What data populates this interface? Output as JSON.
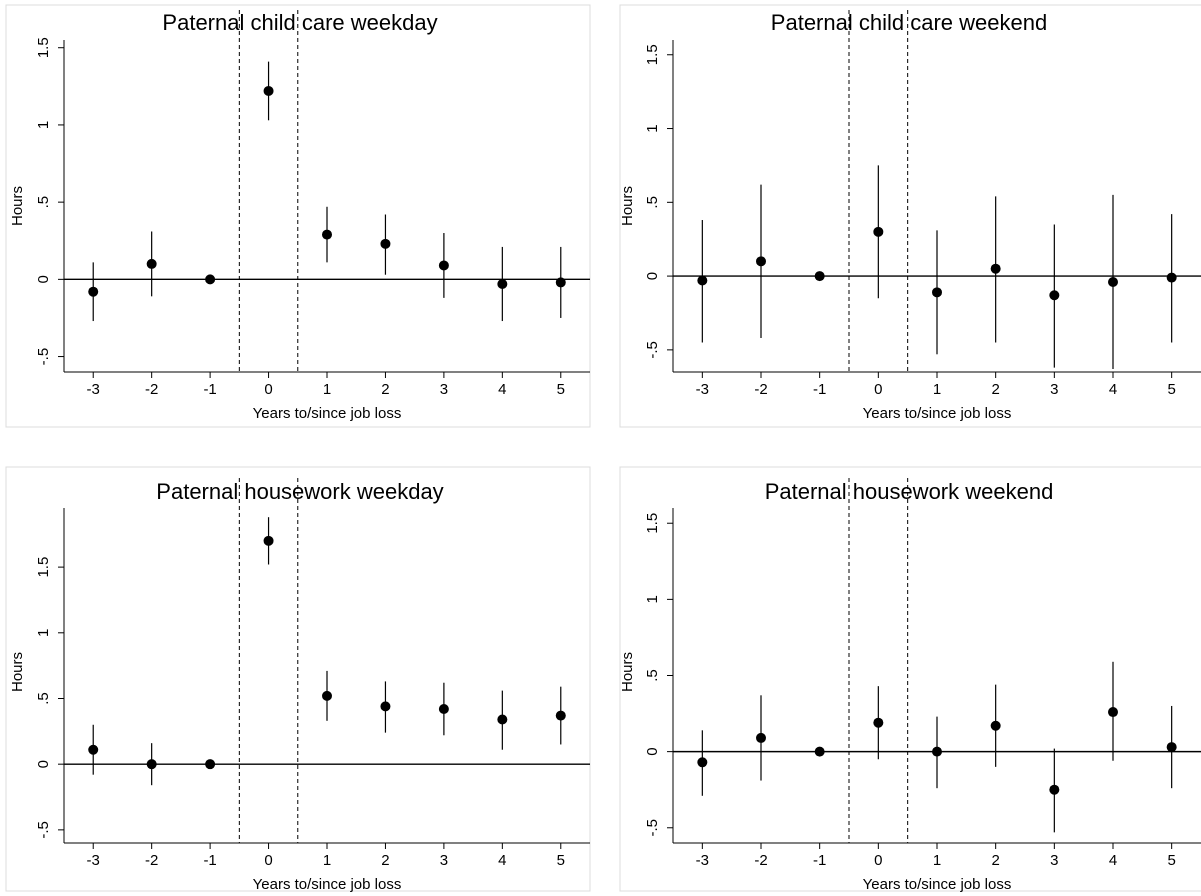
{
  "chart_data": [
    {
      "type": "scatter",
      "title": "Paternal child care weekday",
      "xlabel": "Years to/since job loss",
      "ylabel": "Hours",
      "x_ticks": [
        -3,
        -2,
        -1,
        0,
        1,
        2,
        3,
        4,
        5
      ],
      "y_ticks": [
        -0.5,
        0,
        0.5,
        1,
        1.5
      ],
      "y_tick_labels": [
        "-.5",
        "0",
        ".5",
        "1",
        "1.5"
      ],
      "xlim": [
        -3.5,
        5.5
      ],
      "ylim": [
        -0.6,
        1.55
      ],
      "reference_lines_x": [
        -0.5,
        0.5
      ],
      "reference_line_y": 0,
      "points": [
        {
          "x": -3,
          "y": -0.08,
          "lo": -0.27,
          "hi": 0.11
        },
        {
          "x": -2,
          "y": 0.1,
          "lo": -0.11,
          "hi": 0.31
        },
        {
          "x": -1,
          "y": 0.0,
          "lo": 0.0,
          "hi": 0.0
        },
        {
          "x": 0,
          "y": 1.22,
          "lo": 1.03,
          "hi": 1.41
        },
        {
          "x": 1,
          "y": 0.29,
          "lo": 0.11,
          "hi": 0.47
        },
        {
          "x": 2,
          "y": 0.23,
          "lo": 0.03,
          "hi": 0.42
        },
        {
          "x": 3,
          "y": 0.09,
          "lo": -0.12,
          "hi": 0.3
        },
        {
          "x": 4,
          "y": -0.03,
          "lo": -0.27,
          "hi": 0.21
        },
        {
          "x": 5,
          "y": -0.02,
          "lo": -0.25,
          "hi": 0.21
        }
      ]
    },
    {
      "type": "scatter",
      "title": "Paternal child care weekend",
      "xlabel": "Years to/since job loss",
      "ylabel": "Hours",
      "x_ticks": [
        -3,
        -2,
        -1,
        0,
        1,
        2,
        3,
        4,
        5
      ],
      "y_ticks": [
        -0.5,
        0,
        0.5,
        1,
        1.5
      ],
      "y_tick_labels": [
        "-.5",
        "0",
        ".5",
        "1",
        "1.5"
      ],
      "xlim": [
        -3.5,
        5.5
      ],
      "ylim": [
        -0.65,
        1.6
      ],
      "reference_lines_x": [
        -0.5,
        0.5
      ],
      "reference_line_y": 0,
      "points": [
        {
          "x": -3,
          "y": -0.03,
          "lo": -0.45,
          "hi": 0.38
        },
        {
          "x": -2,
          "y": 0.1,
          "lo": -0.42,
          "hi": 0.62
        },
        {
          "x": -1,
          "y": 0.0,
          "lo": 0.0,
          "hi": 0.0
        },
        {
          "x": 0,
          "y": 0.3,
          "lo": -0.15,
          "hi": 0.75
        },
        {
          "x": 1,
          "y": -0.11,
          "lo": -0.53,
          "hi": 0.31
        },
        {
          "x": 2,
          "y": 0.05,
          "lo": -0.45,
          "hi": 0.54
        },
        {
          "x": 3,
          "y": -0.13,
          "lo": -0.62,
          "hi": 0.35
        },
        {
          "x": 4,
          "y": -0.04,
          "lo": -0.63,
          "hi": 0.55
        },
        {
          "x": 5,
          "y": -0.01,
          "lo": -0.45,
          "hi": 0.42
        }
      ]
    },
    {
      "type": "scatter",
      "title": "Paternal housework weekday",
      "xlabel": "Years to/since job loss",
      "ylabel": "Hours",
      "x_ticks": [
        -3,
        -2,
        -1,
        0,
        1,
        2,
        3,
        4,
        5
      ],
      "y_ticks": [
        -0.5,
        0,
        0.5,
        1,
        1.5
      ],
      "y_tick_labels": [
        "-.5",
        "0",
        ".5",
        "1",
        "1.5"
      ],
      "xlim": [
        -3.5,
        5.5
      ],
      "ylim": [
        -0.6,
        1.95
      ],
      "reference_lines_x": [
        -0.5,
        0.5
      ],
      "reference_line_y": 0,
      "points": [
        {
          "x": -3,
          "y": 0.11,
          "lo": -0.08,
          "hi": 0.3
        },
        {
          "x": -2,
          "y": 0.0,
          "lo": -0.16,
          "hi": 0.16
        },
        {
          "x": -1,
          "y": 0.0,
          "lo": 0.0,
          "hi": 0.0
        },
        {
          "x": 0,
          "y": 1.7,
          "lo": 1.52,
          "hi": 1.88
        },
        {
          "x": 1,
          "y": 0.52,
          "lo": 0.33,
          "hi": 0.71
        },
        {
          "x": 2,
          "y": 0.44,
          "lo": 0.24,
          "hi": 0.63
        },
        {
          "x": 3,
          "y": 0.42,
          "lo": 0.22,
          "hi": 0.62
        },
        {
          "x": 4,
          "y": 0.34,
          "lo": 0.11,
          "hi": 0.56
        },
        {
          "x": 5,
          "y": 0.37,
          "lo": 0.15,
          "hi": 0.59
        }
      ]
    },
    {
      "type": "scatter",
      "title": "Paternal housework weekend",
      "xlabel": "Years to/since job loss",
      "ylabel": "Hours",
      "x_ticks": [
        -3,
        -2,
        -1,
        0,
        1,
        2,
        3,
        4,
        5
      ],
      "y_ticks": [
        -0.5,
        0,
        0.5,
        1,
        1.5
      ],
      "y_tick_labels": [
        "-.5",
        "0",
        ".5",
        "1",
        "1.5"
      ],
      "xlim": [
        -3.5,
        5.5
      ],
      "ylim": [
        -0.6,
        1.6
      ],
      "reference_lines_x": [
        -0.5,
        0.5
      ],
      "reference_line_y": 0,
      "points": [
        {
          "x": -3,
          "y": -0.07,
          "lo": -0.29,
          "hi": 0.14
        },
        {
          "x": -2,
          "y": 0.09,
          "lo": -0.19,
          "hi": 0.37
        },
        {
          "x": -1,
          "y": 0.0,
          "lo": 0.0,
          "hi": 0.0
        },
        {
          "x": 0,
          "y": 0.19,
          "lo": -0.05,
          "hi": 0.43
        },
        {
          "x": 1,
          "y": 0.0,
          "lo": -0.24,
          "hi": 0.23
        },
        {
          "x": 2,
          "y": 0.17,
          "lo": -0.1,
          "hi": 0.44
        },
        {
          "x": 3,
          "y": -0.25,
          "lo": -0.53,
          "hi": 0.02
        },
        {
          "x": 4,
          "y": 0.26,
          "lo": -0.06,
          "hi": 0.59
        },
        {
          "x": 5,
          "y": 0.03,
          "lo": -0.24,
          "hi": 0.3
        }
      ]
    }
  ]
}
